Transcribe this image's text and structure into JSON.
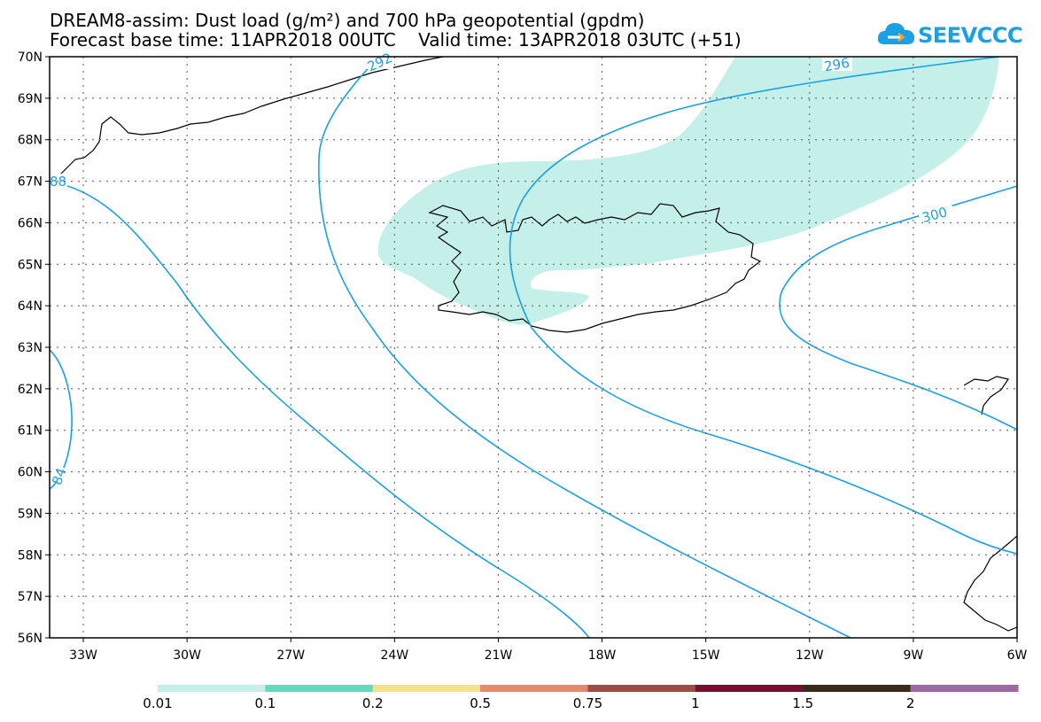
{
  "header": {
    "line1": "DREAM8-assim: Dust load (g/m²) and 700 hPa geopotential (gpdm)",
    "line2": "Forecast base time: 11APR2018 00UTC    Valid time: 13APR2018 03UTC (+51)"
  },
  "logo": {
    "text": "SEEVCCC",
    "color": "#1aa0e6"
  },
  "map": {
    "lat_labels": [
      "70N",
      "69N",
      "68N",
      "67N",
      "66N",
      "65N",
      "64N",
      "63N",
      "62N",
      "61N",
      "60N",
      "59N",
      "58N",
      "57N",
      "56N"
    ],
    "lon_labels": [
      "33W",
      "30W",
      "27W",
      "24W",
      "21W",
      "18W",
      "15W",
      "12W",
      "9W",
      "6W"
    ],
    "dust_color": "#c5f0ea",
    "contour_color": "#1aa0e6",
    "contour_labels": [
      "292",
      "296",
      "300",
      "84",
      "88"
    ]
  },
  "colorbar": {
    "colors": [
      "#c5f0ea",
      "#5fdcbc",
      "#f5e487",
      "#e88a68",
      "#a24a45",
      "#7a0d30",
      "#3a2a1a",
      "#9b6aa2"
    ],
    "labels": [
      "0.01",
      "0.1",
      "0.2",
      "0.5",
      "0.75",
      "1",
      "1.5",
      "2"
    ]
  }
}
